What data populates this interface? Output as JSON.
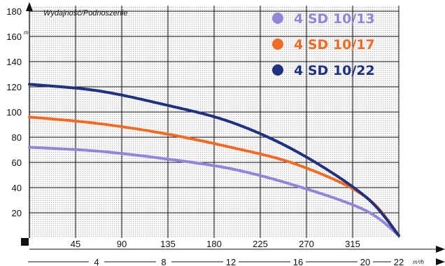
{
  "chart_data": {
    "type": "line",
    "ylabel": "Wydajność/Podnoszenie",
    "y_unit": "m",
    "x_unit": "m³/h",
    "ylim": [
      0,
      180
    ],
    "y_ticks": [
      "20",
      "40",
      "60",
      "80",
      "100",
      "120",
      "140",
      "160",
      "180"
    ],
    "x_ticks_top": [
      "45",
      "90",
      "135",
      "180",
      "225",
      "270",
      "315"
    ],
    "x_ticks_bottom": [
      "4",
      "8",
      "12",
      "16",
      "20",
      "22"
    ],
    "xlim": [
      0,
      22
    ],
    "grid": true,
    "legend_position": "top-right",
    "series": [
      {
        "name": "4 SD 10/13",
        "color": "#9187d6",
        "points": [
          [
            0,
            72
          ],
          [
            4,
            69
          ],
          [
            8,
            63
          ],
          [
            12,
            55
          ],
          [
            16,
            41
          ],
          [
            20,
            22
          ],
          [
            22,
            2
          ]
        ]
      },
      {
        "name": "4 SD 10/17",
        "color": "#f26b26",
        "points": [
          [
            0,
            96
          ],
          [
            4,
            91
          ],
          [
            8,
            83
          ],
          [
            12,
            72
          ],
          [
            16,
            58
          ],
          [
            20,
            33
          ],
          [
            22,
            2
          ]
        ]
      },
      {
        "name": "4 SD 10/22",
        "color": "#20317f",
        "points": [
          [
            0,
            122
          ],
          [
            4,
            117
          ],
          [
            8,
            106
          ],
          [
            12,
            92
          ],
          [
            16,
            68
          ],
          [
            20,
            33
          ],
          [
            22,
            2
          ]
        ]
      }
    ]
  }
}
